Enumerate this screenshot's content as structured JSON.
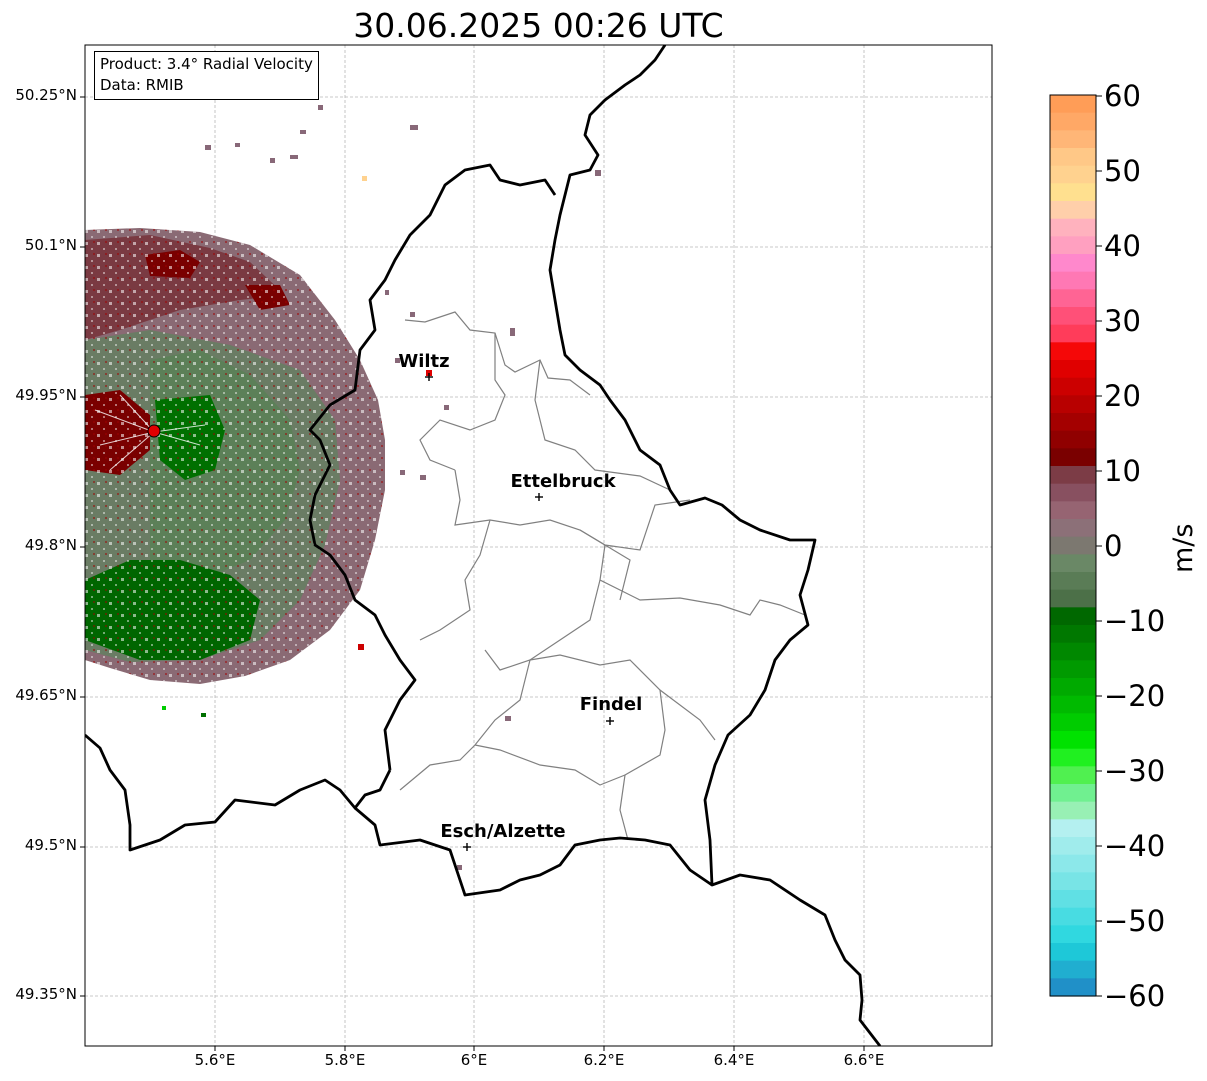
{
  "title": "30.06.2025 00:26 UTC",
  "info": {
    "product": "Product: 3.4° Radial Velocity",
    "source": "Data: RMIB"
  },
  "lat_labels": [
    "50.25°N",
    "50.1°N",
    "49.95°N",
    "49.8°N",
    "49.65°N",
    "49.5°N",
    "49.35°N"
  ],
  "lon_labels": [
    "5.6°E",
    "5.8°E",
    "6°E",
    "6.2°E",
    "6.4°E",
    "6.6°E"
  ],
  "cities": [
    {
      "name": "Wiltz"
    },
    {
      "name": "Ettelbruck"
    },
    {
      "name": "Findel"
    },
    {
      "name": "Esch/Alzette"
    }
  ],
  "colorbar": {
    "unit": "m/s",
    "ticks": [
      "60",
      "50",
      "40",
      "30",
      "20",
      "10",
      "0",
      "−10",
      "−20",
      "−30",
      "−40",
      "−50",
      "−60"
    ],
    "colors": [
      "#ff9d57",
      "#ffa866",
      "#ffb677",
      "#ffc887",
      "#ffd28f",
      "#ffe08f",
      "#ffcfaa",
      "#ffb2be",
      "#ffa0c0",
      "#ff88cc",
      "#ff78b4",
      "#ff6494",
      "#ff5078",
      "#ff3c5a",
      "#f50808",
      "#e00000",
      "#cc0000",
      "#b80000",
      "#a40000",
      "#900000",
      "#7a0000",
      "#7c3c46",
      "#885060",
      "#966472",
      "#8c7078",
      "#7c7870",
      "#6a8866",
      "#5a7c56",
      "#4c7048",
      "#006800",
      "#007800",
      "#008800",
      "#009a00",
      "#00aa00",
      "#00ba00",
      "#00cc00",
      "#00e200",
      "#20f020",
      "#50f050",
      "#70f090",
      "#98f0b4",
      "#b4f0f0",
      "#a0ecec",
      "#8ce8ea",
      "#78e4e6",
      "#60e0e4",
      "#48dce2",
      "#30d8e0",
      "#1ec8d8",
      "#20aed0",
      "#2090c8"
    ]
  }
}
